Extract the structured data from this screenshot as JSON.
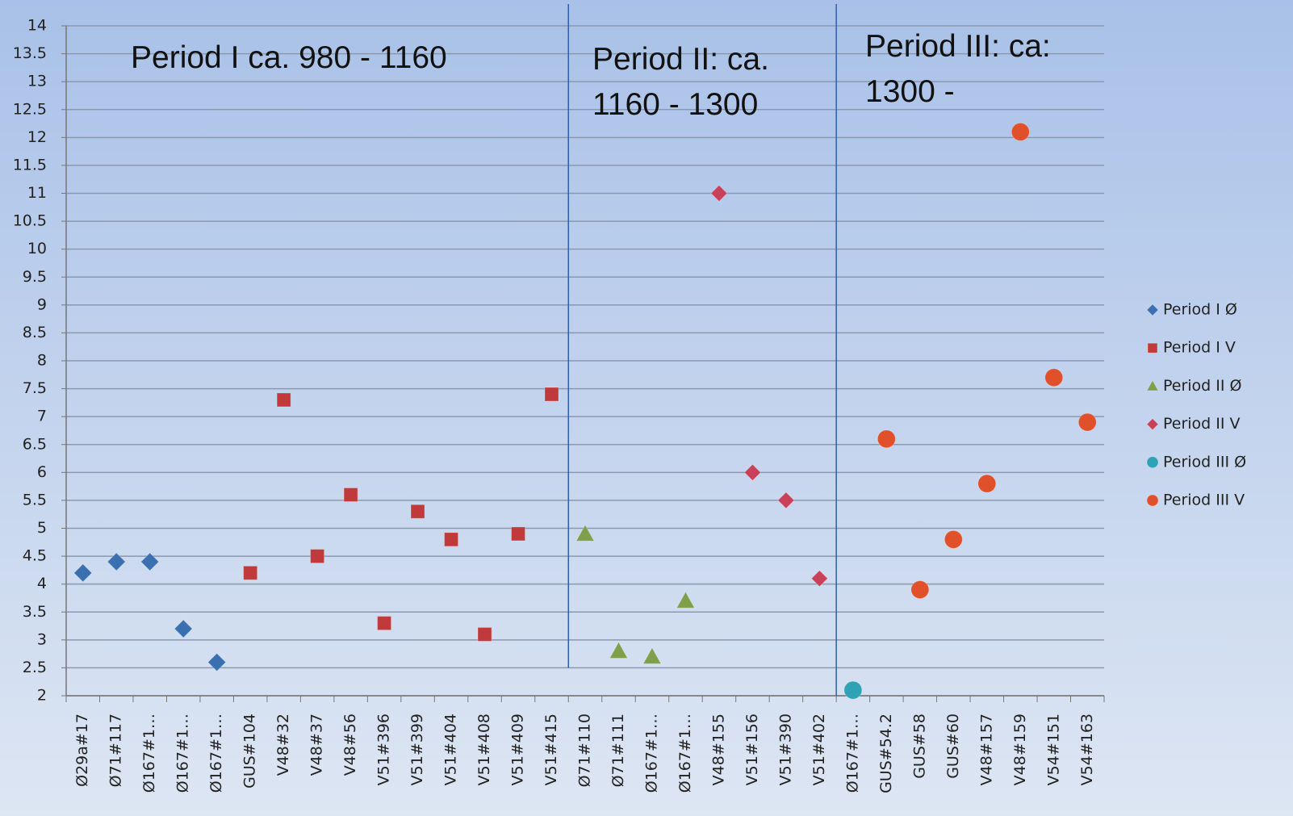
{
  "chart_data": {
    "type": "scatter",
    "annotations": [
      "Period I ca. 980 - 1160",
      "Period II: ca.\n1160 - 1300",
      "Period III: ca:\n1300 -"
    ],
    "categories": [
      "Ø29a#17",
      "Ø71#117",
      "Ø167#1…",
      "Ø167#1…",
      "Ø167#1…",
      "GUS#104",
      "V48#32",
      "V48#37",
      "V48#56",
      "V51#396",
      "V51#399",
      "V51#404",
      "V51#408",
      "V51#409",
      "V51#415",
      "Ø71#110",
      "Ø71#111",
      "Ø167#1…",
      "Ø167#1…",
      "V48#155",
      "V51#156",
      "V51#390",
      "V51#402",
      "Ø167#1…",
      "GUS#54.2",
      "GUS#58",
      "GUS#60",
      "V48#157",
      "V48#159",
      "V54#151",
      "V54#163"
    ],
    "series": [
      {
        "name": "Period I Ø",
        "color": "#3a6fb0",
        "marker": "diamond",
        "values": [
          4.2,
          4.4,
          4.4,
          3.2,
          2.6,
          null,
          null,
          null,
          null,
          null,
          null,
          null,
          null,
          null,
          null,
          null,
          null,
          null,
          null,
          null,
          null,
          null,
          null,
          null,
          null,
          null,
          null,
          null,
          null,
          null,
          null
        ]
      },
      {
        "name": "Period I V",
        "color": "#c0393b",
        "marker": "square",
        "values": [
          null,
          null,
          null,
          null,
          null,
          4.2,
          7.3,
          4.5,
          5.6,
          3.3,
          5.3,
          4.8,
          3.1,
          4.9,
          7.4,
          null,
          null,
          null,
          null,
          null,
          null,
          null,
          null,
          null,
          null,
          null,
          null,
          null,
          null,
          null,
          null
        ]
      },
      {
        "name": "Period II Ø",
        "color": "#7f9f4a",
        "marker": "triangle",
        "values": [
          null,
          null,
          null,
          null,
          null,
          null,
          null,
          null,
          null,
          null,
          null,
          null,
          null,
          null,
          null,
          4.9,
          2.8,
          2.7,
          3.7,
          null,
          null,
          null,
          null,
          null,
          null,
          null,
          null,
          null,
          null,
          null,
          null
        ]
      },
      {
        "name": "Period II V",
        "color": "#c8405a",
        "marker": "diamond",
        "values": [
          null,
          null,
          null,
          null,
          null,
          null,
          null,
          null,
          null,
          null,
          null,
          null,
          null,
          null,
          null,
          null,
          null,
          null,
          null,
          11,
          6,
          5.5,
          4.1,
          null,
          null,
          null,
          null,
          null,
          null,
          null,
          null
        ]
      },
      {
        "name": "Period III Ø",
        "color": "#2fa3b5",
        "marker": "circle",
        "values": [
          null,
          null,
          null,
          null,
          null,
          null,
          null,
          null,
          null,
          null,
          null,
          null,
          null,
          null,
          null,
          null,
          null,
          null,
          null,
          null,
          null,
          null,
          null,
          2.1,
          null,
          null,
          null,
          null,
          null,
          null,
          null
        ]
      },
      {
        "name": "Period III V",
        "color": "#e0502a",
        "marker": "circle",
        "values": [
          null,
          null,
          null,
          null,
          null,
          null,
          null,
          null,
          null,
          null,
          null,
          null,
          null,
          null,
          null,
          null,
          null,
          null,
          null,
          null,
          null,
          null,
          null,
          null,
          6.6,
          3.9,
          4.8,
          5.8,
          12.1,
          7.7,
          6.9
        ]
      }
    ],
    "ylim": [
      2,
      14
    ],
    "yticks": [
      2,
      2.5,
      3,
      3.5,
      4,
      4.5,
      5,
      5.5,
      6,
      6.5,
      7,
      7.5,
      8,
      8.5,
      9,
      9.5,
      10,
      10.5,
      11,
      11.5,
      12,
      12.5,
      13,
      13.5,
      14
    ],
    "grid": true,
    "legend": "right"
  }
}
